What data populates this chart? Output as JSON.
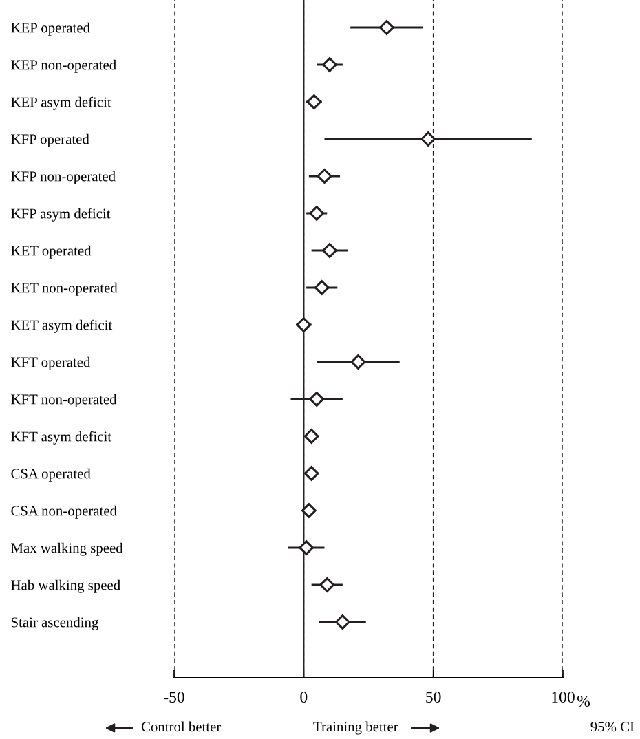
{
  "chart_data": {
    "type": "scatter",
    "orientation": "horizontal",
    "categories": [
      "KEP operated",
      "KEP non-operated",
      "KEP asym deficit",
      "KFP operated",
      "KFP non-operated",
      "KFP asym deficit",
      "KET operated",
      "KET non-operated",
      "KET asym deficit",
      "KFT operated",
      "KFT non-operated",
      "KFT asym deficit",
      "CSA operated",
      "CSA non-operated",
      "Max walking speed",
      "Hab walking speed",
      "Stair ascending"
    ],
    "series": [
      {
        "color": "#231f20",
        "values": [
          32,
          10,
          4,
          48,
          8,
          5,
          10,
          7,
          0,
          21,
          5,
          3,
          3,
          2,
          1,
          9,
          15
        ],
        "errors": [
          [
            18,
            46
          ],
          [
            5,
            15
          ],
          [
            1,
            7
          ],
          [
            8,
            88
          ],
          [
            2,
            14
          ],
          [
            1,
            9
          ],
          [
            3,
            17
          ],
          [
            1,
            13
          ],
          [
            -3,
            3
          ],
          [
            5,
            37
          ],
          [
            -5,
            15
          ],
          [
            0.5,
            5.5
          ],
          [
            0.5,
            5.5
          ],
          [
            -0.5,
            4.5
          ],
          [
            -6,
            8
          ],
          [
            3,
            15
          ],
          [
            6,
            24
          ]
        ]
      }
    ],
    "xlim": [
      -50,
      100
    ],
    "xticks": [
      -50,
      0,
      50,
      100
    ],
    "xlabel": "%",
    "marker": "diamond",
    "grid": "x",
    "tick_labels": "x",
    "ref_lines": [
      {
        "axis": "x",
        "value": 0,
        "line_style": "solid",
        "color": "#231f20"
      }
    ],
    "annotations": [
      "Control better",
      "Training better",
      "95% CI"
    ]
  }
}
